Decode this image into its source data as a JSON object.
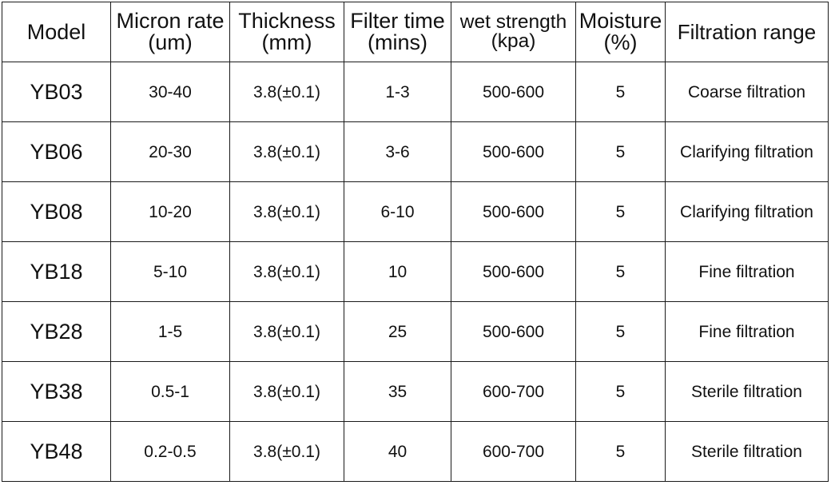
{
  "table": {
    "headers": [
      {
        "line1": "Model",
        "line2": ""
      },
      {
        "line1": "Micron rate",
        "line2": "(um)"
      },
      {
        "line1": "Thickness",
        "line2": "(mm)"
      },
      {
        "line1": "Filter time",
        "line2": "(mins)"
      },
      {
        "line1": "wet strength",
        "line2": "(kpa)"
      },
      {
        "line1": "Moisture",
        "line2": "(%)"
      },
      {
        "line1": "Filtration range",
        "line2": ""
      }
    ],
    "rows": [
      {
        "model": "YB03",
        "micron": "30-40",
        "thickness": "3.8(±0.1)",
        "filter_time": "1-3",
        "wet_strength": "500-600",
        "moisture": "5",
        "range": "Coarse filtration"
      },
      {
        "model": "YB06",
        "micron": "20-30",
        "thickness": "3.8(±0.1)",
        "filter_time": "3-6",
        "wet_strength": "500-600",
        "moisture": "5",
        "range": "Clarifying filtration"
      },
      {
        "model": "YB08",
        "micron": "10-20",
        "thickness": "3.8(±0.1)",
        "filter_time": "6-10",
        "wet_strength": "500-600",
        "moisture": "5",
        "range": "Clarifying filtration"
      },
      {
        "model": "YB18",
        "micron": "5-10",
        "thickness": "3.8(±0.1)",
        "filter_time": "10",
        "wet_strength": "500-600",
        "moisture": "5",
        "range": "Fine filtration"
      },
      {
        "model": "YB28",
        "micron": "1-5",
        "thickness": "3.8(±0.1)",
        "filter_time": "25",
        "wet_strength": "500-600",
        "moisture": "5",
        "range": "Fine filtration"
      },
      {
        "model": "YB38",
        "micron": "0.5-1",
        "thickness": "3.8(±0.1)",
        "filter_time": "35",
        "wet_strength": "600-700",
        "moisture": "5",
        "range": "Sterile filtration"
      },
      {
        "model": "YB48",
        "micron": "0.2-0.5",
        "thickness": "3.8(±0.1)",
        "filter_time": "40",
        "wet_strength": "600-700",
        "moisture": "5",
        "range": "Sterile filtration"
      }
    ]
  }
}
